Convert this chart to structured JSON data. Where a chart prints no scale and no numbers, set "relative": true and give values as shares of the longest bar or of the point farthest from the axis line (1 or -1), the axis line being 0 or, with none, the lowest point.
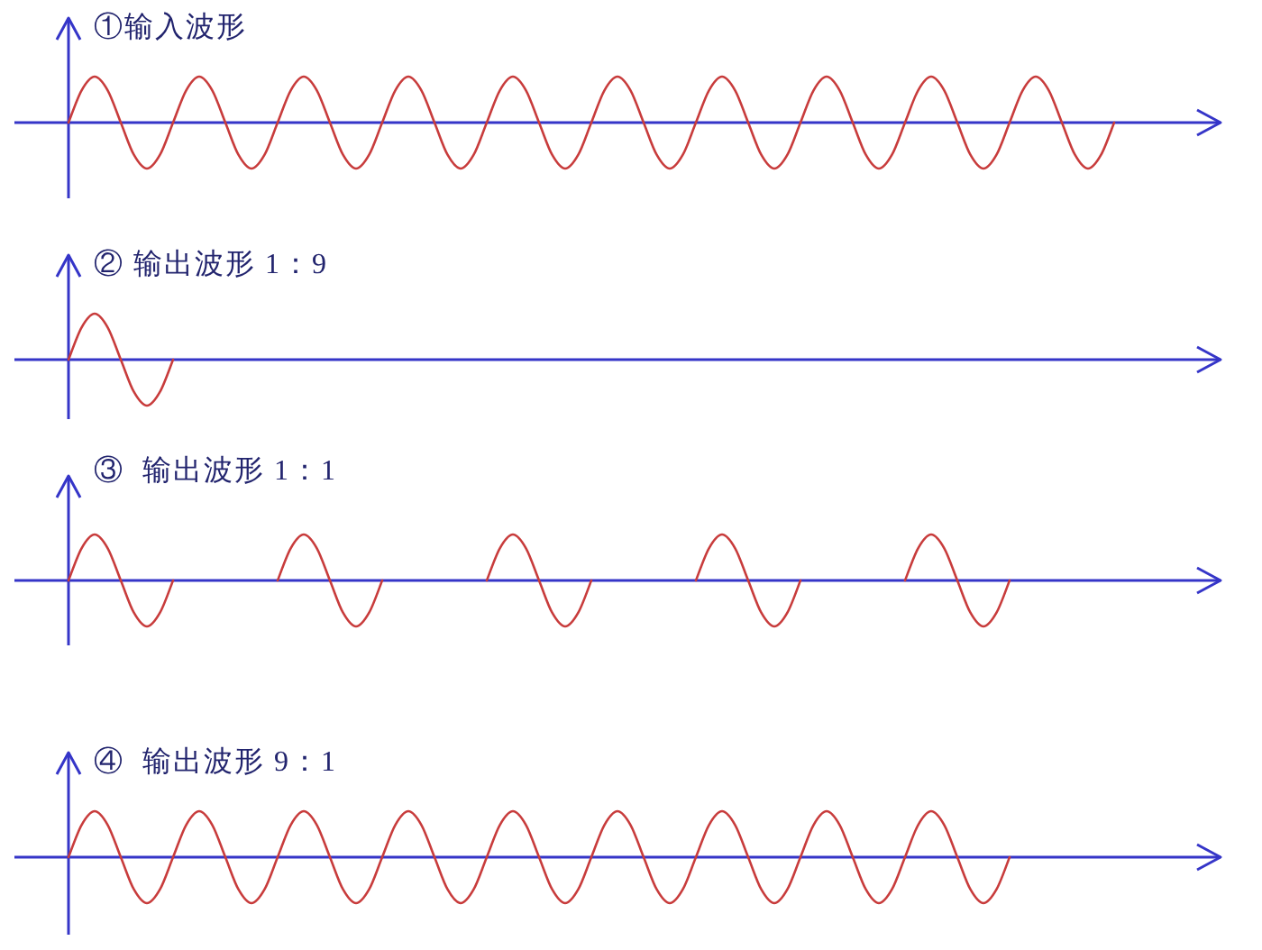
{
  "chart_data": [
    {
      "type": "line",
      "title": "①输入波形",
      "relative": true,
      "color": "#c83c3c",
      "ref_lines": [
        {
          "axis": "y",
          "value": 0,
          "color": "#3535c8"
        }
      ],
      "categories": [
        null,
        null,
        null,
        null,
        null,
        null,
        null,
        null,
        null,
        null,
        null,
        null,
        null,
        null,
        null,
        null,
        null,
        null,
        null,
        null,
        null,
        null,
        null,
        null,
        null,
        null,
        null,
        null,
        null,
        null,
        null,
        null,
        null,
        null,
        null,
        null,
        null,
        null,
        null,
        null,
        null,
        null,
        null,
        null,
        null,
        null,
        null,
        null,
        null,
        null,
        null,
        null,
        null,
        null,
        null,
        null,
        null,
        null,
        null,
        null,
        null,
        null,
        null,
        null,
        null,
        null,
        null,
        null,
        null,
        null,
        null,
        null,
        null,
        null,
        null,
        null,
        null,
        null,
        null,
        null,
        null
      ],
      "values": [
        0,
        0.7,
        1,
        0.7,
        0,
        -0.7,
        -1,
        -0.7,
        0,
        0.7,
        1,
        0.7,
        0,
        -0.7,
        -1,
        -0.7,
        0,
        0.7,
        1,
        0.7,
        0,
        -0.7,
        -1,
        -0.7,
        0,
        0.7,
        1,
        0.7,
        0,
        -0.7,
        -1,
        -0.7,
        0,
        0.7,
        1,
        0.7,
        0,
        -0.7,
        -1,
        -0.7,
        0,
        0.7,
        1,
        0.7,
        0,
        -0.7,
        -1,
        -0.7,
        0,
        0.7,
        1,
        0.7,
        0,
        -0.7,
        -1,
        -0.7,
        0,
        0.7,
        1,
        0.7,
        0,
        -0.7,
        -1,
        -0.7,
        0,
        0.7,
        1,
        0.7,
        0,
        -0.7,
        -1,
        -0.7,
        0,
        0.7,
        1,
        0.7,
        0,
        -0.7,
        -1,
        -0.7,
        0
      ]
    },
    {
      "type": "line",
      "title": "② 输出波形 1：9",
      "relative": true,
      "color": "#c83c3c",
      "ref_lines": [
        {
          "axis": "y",
          "value": 0,
          "color": "#3535c8"
        }
      ],
      "categories": [
        null,
        null,
        null,
        null,
        null,
        null,
        null,
        null,
        null,
        null,
        null,
        null,
        null,
        null,
        null,
        null,
        null,
        null,
        null,
        null,
        null,
        null,
        null,
        null,
        null,
        null,
        null,
        null,
        null,
        null,
        null,
        null,
        null,
        null,
        null,
        null,
        null,
        null,
        null,
        null,
        null,
        null,
        null,
        null,
        null,
        null,
        null,
        null,
        null,
        null,
        null,
        null,
        null,
        null,
        null,
        null,
        null,
        null,
        null,
        null,
        null,
        null,
        null,
        null,
        null,
        null,
        null,
        null,
        null,
        null,
        null,
        null,
        null,
        null,
        null,
        null,
        null,
        null,
        null,
        null,
        null
      ],
      "values": [
        0,
        0.7,
        1,
        0.7,
        0,
        -0.7,
        -1,
        -0.7,
        0,
        null,
        null,
        null,
        null,
        null,
        null,
        null,
        null,
        null,
        null,
        null,
        null,
        null,
        null,
        null,
        null,
        null,
        null,
        null,
        null,
        null,
        null,
        null,
        null,
        null,
        null,
        null,
        null,
        null,
        null,
        null,
        null,
        null,
        null,
        null,
        null,
        null,
        null,
        null,
        null,
        null,
        null,
        null,
        null,
        null,
        null,
        null,
        null,
        null,
        null,
        null,
        null,
        null,
        null,
        null,
        null,
        null,
        null,
        null,
        null,
        null,
        null,
        null,
        null,
        null,
        null,
        null,
        null,
        null,
        null,
        null,
        null
      ]
    },
    {
      "type": "line",
      "title": "③  输出波形 1：1",
      "relative": true,
      "color": "#c83c3c",
      "ref_lines": [
        {
          "axis": "y",
          "value": 0,
          "color": "#3535c8"
        }
      ],
      "categories": [
        null,
        null,
        null,
        null,
        null,
        null,
        null,
        null,
        null,
        null,
        null,
        null,
        null,
        null,
        null,
        null,
        null,
        null,
        null,
        null,
        null,
        null,
        null,
        null,
        null,
        null,
        null,
        null,
        null,
        null,
        null,
        null,
        null,
        null,
        null,
        null,
        null,
        null,
        null,
        null,
        null,
        null,
        null,
        null,
        null,
        null,
        null,
        null,
        null,
        null,
        null,
        null,
        null,
        null,
        null,
        null,
        null,
        null,
        null,
        null,
        null,
        null,
        null,
        null,
        null,
        null,
        null,
        null,
        null,
        null,
        null,
        null,
        null,
        null,
        null,
        null,
        null,
        null,
        null,
        null,
        null
      ],
      "values": [
        0,
        0.7,
        1,
        0.7,
        0,
        -0.7,
        -1,
        -0.7,
        0,
        null,
        null,
        null,
        null,
        null,
        null,
        null,
        0,
        0.7,
        1,
        0.7,
        0,
        -0.7,
        -1,
        -0.7,
        0,
        null,
        null,
        null,
        null,
        null,
        null,
        null,
        0,
        0.7,
        1,
        0.7,
        0,
        -0.7,
        -1,
        -0.7,
        0,
        null,
        null,
        null,
        null,
        null,
        null,
        null,
        0,
        0.7,
        1,
        0.7,
        0,
        -0.7,
        -1,
        -0.7,
        0,
        null,
        null,
        null,
        null,
        null,
        null,
        null,
        0,
        0.7,
        1,
        0.7,
        0,
        -0.7,
        -1,
        -0.7,
        0,
        null,
        null,
        null,
        null,
        null,
        null,
        null,
        null
      ]
    },
    {
      "type": "line",
      "title": "④  输出波形 9：1",
      "relative": true,
      "color": "#c83c3c",
      "ref_lines": [
        {
          "axis": "y",
          "value": 0,
          "color": "#3535c8"
        }
      ],
      "categories": [
        null,
        null,
        null,
        null,
        null,
        null,
        null,
        null,
        null,
        null,
        null,
        null,
        null,
        null,
        null,
        null,
        null,
        null,
        null,
        null,
        null,
        null,
        null,
        null,
        null,
        null,
        null,
        null,
        null,
        null,
        null,
        null,
        null,
        null,
        null,
        null,
        null,
        null,
        null,
        null,
        null,
        null,
        null,
        null,
        null,
        null,
        null,
        null,
        null,
        null,
        null,
        null,
        null,
        null,
        null,
        null,
        null,
        null,
        null,
        null,
        null,
        null,
        null,
        null,
        null,
        null,
        null,
        null,
        null,
        null,
        null,
        null,
        null,
        null,
        null,
        null,
        null,
        null,
        null,
        null,
        null
      ],
      "values": [
        0,
        0.7,
        1,
        0.7,
        0,
        -0.7,
        -1,
        -0.7,
        0,
        0.7,
        1,
        0.7,
        0,
        -0.7,
        -1,
        -0.7,
        0,
        0.7,
        1,
        0.7,
        0,
        -0.7,
        -1,
        -0.7,
        0,
        0.7,
        1,
        0.7,
        0,
        -0.7,
        -1,
        -0.7,
        0,
        0.7,
        1,
        0.7,
        0,
        -0.7,
        -1,
        -0.7,
        0,
        0.7,
        1,
        0.7,
        0,
        -0.7,
        -1,
        -0.7,
        0,
        0.7,
        1,
        0.7,
        0,
        -0.7,
        -1,
        -0.7,
        0,
        0.7,
        1,
        0.7,
        0,
        -0.7,
        -1,
        -0.7,
        0,
        0.7,
        1,
        0.7,
        0,
        -0.7,
        -1,
        -0.7,
        0,
        null,
        null,
        null,
        null,
        null,
        null,
        null,
        null
      ]
    }
  ]
}
